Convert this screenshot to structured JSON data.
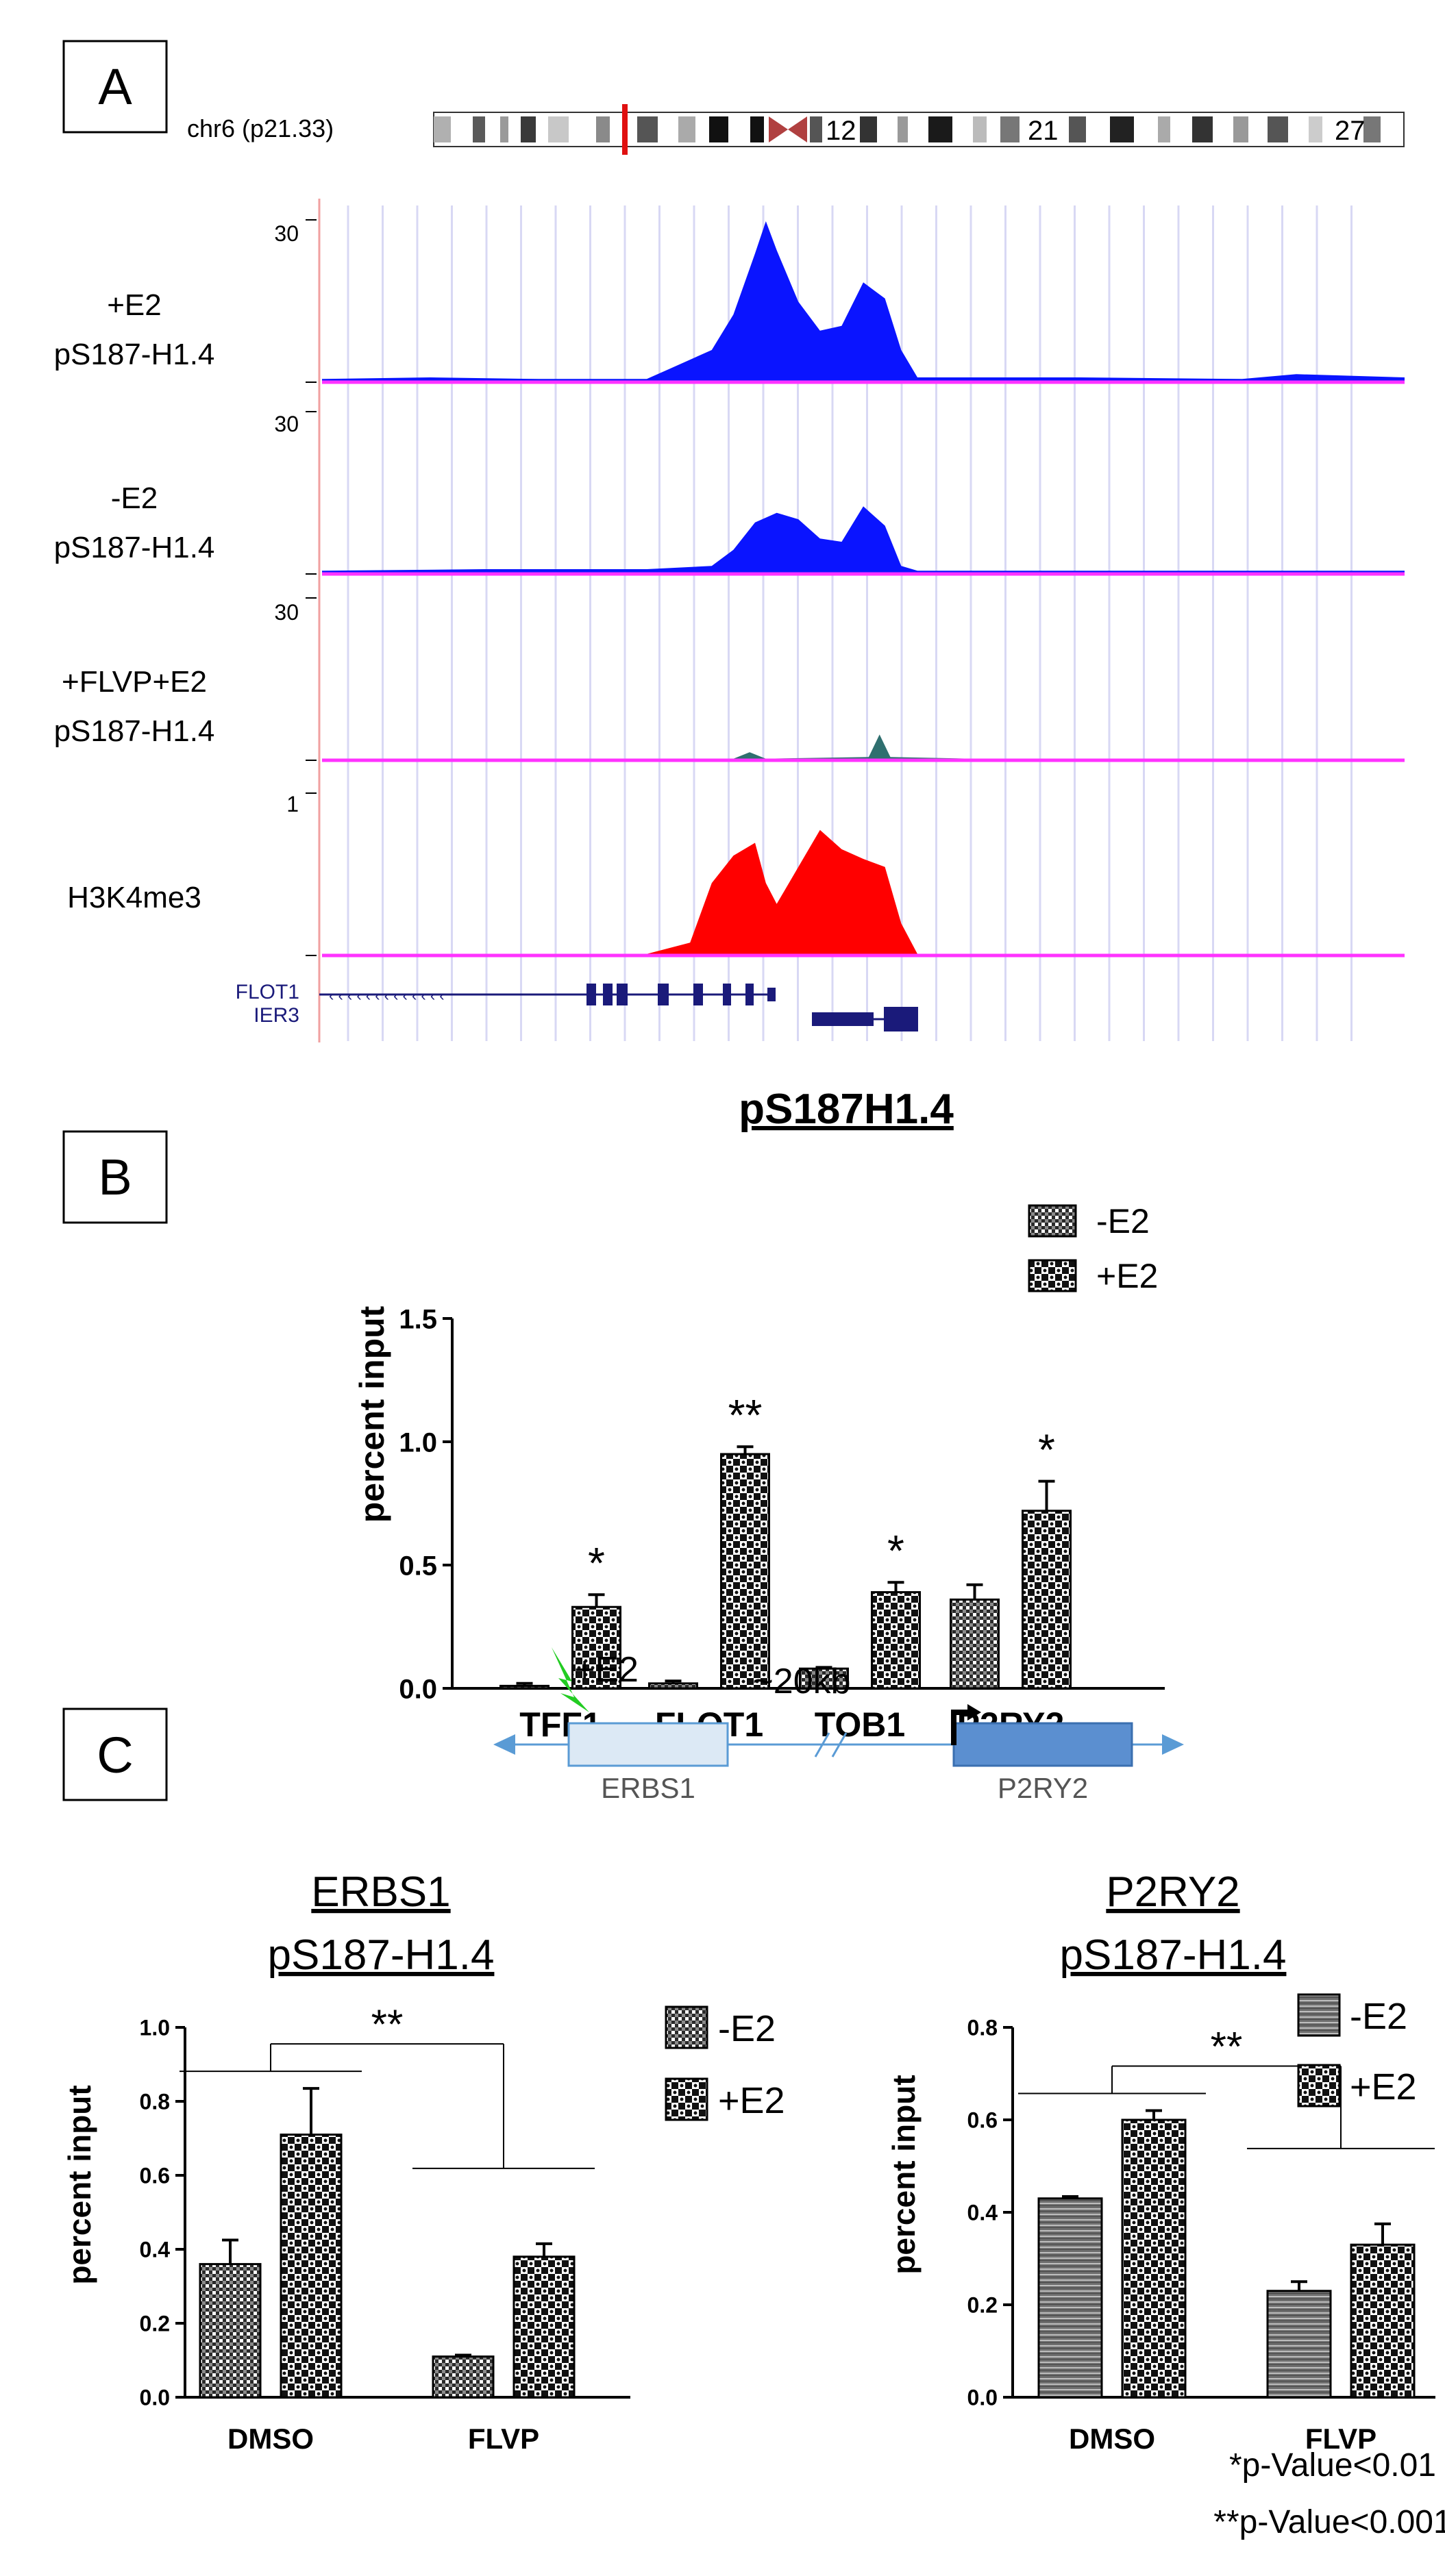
{
  "colors": {
    "track_blue": "#0a14ff",
    "track_red": "#ff0000",
    "baseline_magenta": "#ff33ff",
    "grid_lavender": "#d8d8f4",
    "gene_navy": "#1a1a7a",
    "ideogram_red": "#e01010",
    "bolt_green": "#22cc22",
    "arrow_blue": "#5a9bd5",
    "erbs_fill": "#dce9f5",
    "p2ry2_fill": "#5b8fd0"
  },
  "panel_a": {
    "label": "A",
    "chrom_label": "chr6 (p21.33)",
    "band_labels": [
      "12",
      "21",
      "27"
    ],
    "tracks": [
      {
        "name_line1": "+E2",
        "name_line2": "pS187-H1.4",
        "scale_top": "30",
        "color": "#0a14ff",
        "profile": [
          [
            0.0,
            0.02
          ],
          [
            0.1,
            0.03
          ],
          [
            0.2,
            0.02
          ],
          [
            0.3,
            0.02
          ],
          [
            0.32,
            0.08
          ],
          [
            0.36,
            0.2
          ],
          [
            0.38,
            0.42
          ],
          [
            0.4,
            0.8
          ],
          [
            0.41,
            1.0
          ],
          [
            0.42,
            0.82
          ],
          [
            0.44,
            0.5
          ],
          [
            0.46,
            0.32
          ],
          [
            0.48,
            0.35
          ],
          [
            0.5,
            0.62
          ],
          [
            0.52,
            0.52
          ],
          [
            0.535,
            0.2
          ],
          [
            0.55,
            0.03
          ],
          [
            0.7,
            0.03
          ],
          [
            0.85,
            0.02
          ],
          [
            0.9,
            0.05
          ],
          [
            1.0,
            0.03
          ]
        ]
      },
      {
        "name_line1": "-E2",
        "name_line2": "pS187-H1.4",
        "scale_top": "30",
        "color": "#0a14ff",
        "profile": [
          [
            0.0,
            0.02
          ],
          [
            0.15,
            0.03
          ],
          [
            0.3,
            0.03
          ],
          [
            0.36,
            0.05
          ],
          [
            0.38,
            0.15
          ],
          [
            0.4,
            0.32
          ],
          [
            0.42,
            0.38
          ],
          [
            0.44,
            0.34
          ],
          [
            0.46,
            0.22
          ],
          [
            0.48,
            0.2
          ],
          [
            0.5,
            0.42
          ],
          [
            0.52,
            0.3
          ],
          [
            0.535,
            0.05
          ],
          [
            0.55,
            0.02
          ],
          [
            0.75,
            0.02
          ],
          [
            1.0,
            0.02
          ]
        ]
      },
      {
        "name_line1": "+FLVP+E2",
        "name_line2": "pS187-H1.4",
        "scale_top": "30",
        "color": "#2f6f6f",
        "profile": [
          [
            0.0,
            0.01
          ],
          [
            0.38,
            0.01
          ],
          [
            0.395,
            0.05
          ],
          [
            0.41,
            0.01
          ],
          [
            0.505,
            0.02
          ],
          [
            0.515,
            0.16
          ],
          [
            0.525,
            0.02
          ],
          [
            0.6,
            0.01
          ],
          [
            1.0,
            0.01
          ]
        ]
      },
      {
        "name_line1": "H3K4me3",
        "name_line2": "",
        "scale_top": "1",
        "color": "#ff0000",
        "profile": [
          [
            0.0,
            0.01
          ],
          [
            0.3,
            0.01
          ],
          [
            0.34,
            0.08
          ],
          [
            0.36,
            0.45
          ],
          [
            0.38,
            0.62
          ],
          [
            0.4,
            0.7
          ],
          [
            0.41,
            0.45
          ],
          [
            0.42,
            0.32
          ],
          [
            0.44,
            0.55
          ],
          [
            0.46,
            0.78
          ],
          [
            0.48,
            0.66
          ],
          [
            0.5,
            0.6
          ],
          [
            0.52,
            0.55
          ],
          [
            0.535,
            0.2
          ],
          [
            0.55,
            0.01
          ],
          [
            1.0,
            0.01
          ]
        ]
      }
    ],
    "genes": [
      {
        "name": "FLOT1"
      },
      {
        "name": "IER3"
      }
    ]
  },
  "panel_b": {
    "label": "B",
    "chart_data": {
      "type": "bar",
      "title": "pS187H1.4",
      "ylabel": "percent input",
      "xlabel": "",
      "ylim": [
        0,
        1.5
      ],
      "yticks": [
        "0.0",
        "0.5",
        "1.0",
        "1.5"
      ],
      "categories": [
        "TFF1",
        "FLOT1",
        "TOB1",
        "P2RY2"
      ],
      "series": [
        {
          "name": "-E2",
          "values": [
            0.01,
            0.02,
            0.08,
            0.36
          ],
          "errors": [
            0.01,
            0.01,
            0.005,
            0.06
          ]
        },
        {
          "name": "+E2",
          "values": [
            0.33,
            0.95,
            0.39,
            0.72
          ],
          "errors": [
            0.05,
            0.03,
            0.04,
            0.12
          ]
        }
      ],
      "significance": [
        "*",
        "**",
        "*",
        "*"
      ],
      "legend": "top-right"
    }
  },
  "panel_c": {
    "label": "C",
    "diagram": {
      "stimulus": "+E2",
      "distance": "~20kb",
      "element_left": "ERBS1",
      "element_right": "P2RY2"
    },
    "charts": [
      {
        "type": "bar",
        "title_line1": "ERBS1",
        "title_line2": "pS187-H1.4",
        "ylabel": "percent input",
        "ylim": [
          0,
          1.0
        ],
        "yticks": [
          "0.0",
          "0.2",
          "0.4",
          "0.6",
          "0.8",
          "1.0"
        ],
        "categories": [
          "DMSO",
          "FLVP"
        ],
        "series": [
          {
            "name": "-E2",
            "values": [
              0.36,
              0.11
            ],
            "errors": [
              0.065,
              0.004
            ]
          },
          {
            "name": "+E2",
            "values": [
              0.71,
              0.38
            ],
            "errors": [
              0.125,
              0.035
            ]
          }
        ],
        "comparison": "**",
        "legend": "top-right"
      },
      {
        "type": "bar",
        "title_line1": "P2RY2",
        "title_line2": "pS187-H1.4",
        "ylabel": "percent input",
        "ylim": [
          0,
          0.8
        ],
        "yticks": [
          "0.0",
          "0.2",
          "0.4",
          "0.6",
          "0.8"
        ],
        "categories": [
          "DMSO",
          "FLVP"
        ],
        "series": [
          {
            "name": "-E2",
            "values": [
              0.43,
              0.23
            ],
            "errors": [
              0.004,
              0.02
            ]
          },
          {
            "name": "+E2",
            "values": [
              0.6,
              0.33
            ],
            "errors": [
              0.02,
              0.045
            ]
          }
        ],
        "comparison": "**",
        "legend": "top-right"
      }
    ]
  },
  "footnotes": [
    "*p-Value<0.01",
    "**p-Value<0.001"
  ]
}
